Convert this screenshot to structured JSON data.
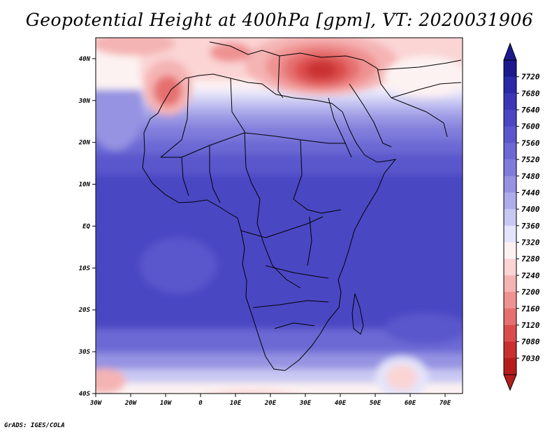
{
  "map": {
    "title": "Geopotential Height at 400hPa [gpm], VT: 2020031906",
    "credit": "GrADS: IGES/COLA",
    "variable": "Geopotential Height",
    "level_hpa": 400,
    "units": "gpm",
    "valid_time": "2020031906",
    "region": "Africa",
    "lon_range": [
      -30,
      75
    ],
    "lat_range": [
      -40,
      45
    ],
    "lon_ticks": [
      "30W",
      "20W",
      "10W",
      "0",
      "10E",
      "20E",
      "30E",
      "40E",
      "50E",
      "60E",
      "70E"
    ],
    "lat_ticks": [
      "40N",
      "30N",
      "20N",
      "10N",
      "EQ",
      "10S",
      "20S",
      "30S",
      "40S"
    ]
  },
  "colorbar": {
    "levels": [
      "7720",
      "7680",
      "7640",
      "7600",
      "7560",
      "7520",
      "7480",
      "7440",
      "7400",
      "7360",
      "7320",
      "7280",
      "7240",
      "7200",
      "7160",
      "7120",
      "7080",
      "7030"
    ],
    "colors": [
      "#1c1a8c",
      "#2a29a6",
      "#3a38b7",
      "#4a47c3",
      "#5a57cc",
      "#6c69d4",
      "#7f7cdb",
      "#9593e2",
      "#aeacea",
      "#c9c8f2",
      "#e4e4fa",
      "#fdf2f2",
      "#fbd4d4",
      "#f5b4b4",
      "#ef9292",
      "#e66f6f",
      "#db4d4d",
      "#c93030",
      "#b51d1d"
    ],
    "top_arrow_color": "#1c1a8c",
    "bottom_arrow_color": "#b51d1d"
  }
}
